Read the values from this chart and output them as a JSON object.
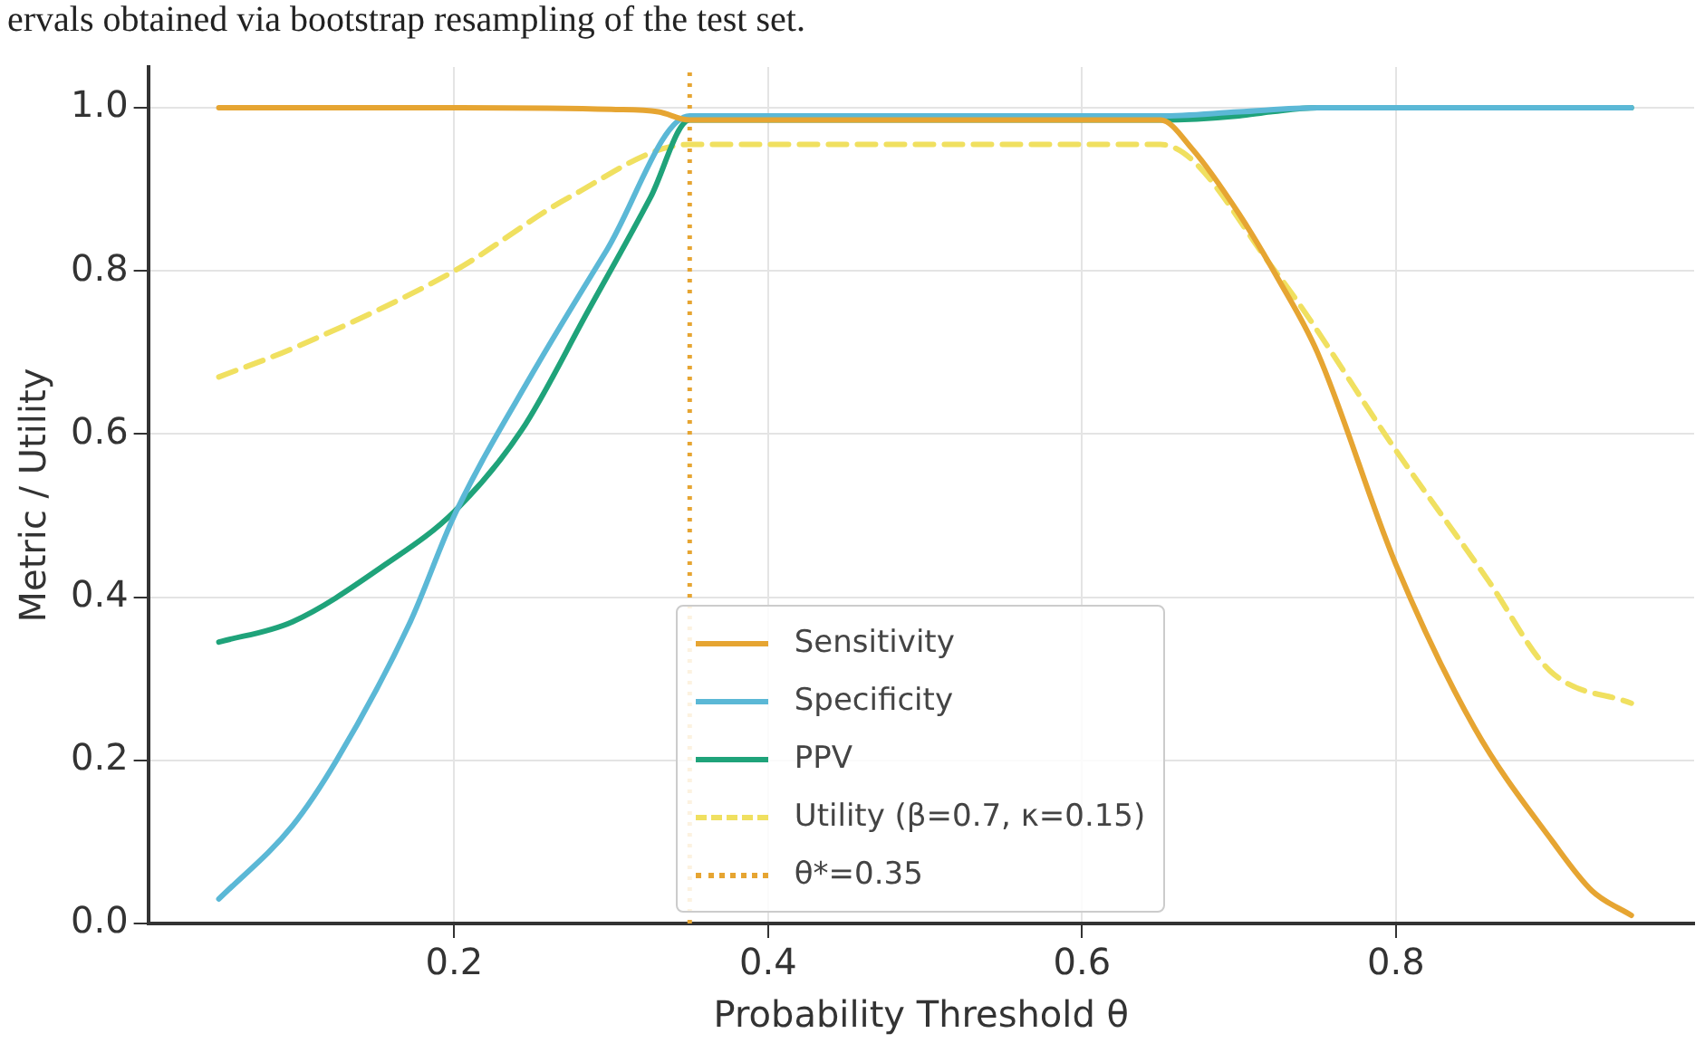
{
  "chart_data": {
    "type": "line",
    "xlabel": "Probability Threshold θ",
    "ylabel": "Metric / Utility",
    "annotations": [
      "ervals obtained via bootstrap resampling of the test set."
    ],
    "xlim": [
      0.005,
      0.99
    ],
    "ylim": [
      0,
      1.05
    ],
    "xticks": [
      0.2,
      0.4,
      0.6,
      0.8
    ],
    "yticks": [
      {
        "value": 0,
        "label": "0.0"
      },
      {
        "value": 0.2,
        "label": "0.2"
      },
      {
        "value": 0.4,
        "label": "0.4"
      },
      {
        "value": 0.6,
        "label": "0.6"
      },
      {
        "value": 0.8,
        "label": "0.8"
      },
      {
        "value": 1,
        "label": "1.0"
      }
    ],
    "grid": true,
    "legend": "bottom",
    "marker": "none",
    "series": [
      {
        "name": "Sensitivity",
        "color": "#e6a532",
        "x": [
          0.05,
          0.1,
          0.2,
          0.3,
          0.33,
          0.35,
          0.5,
          0.65,
          0.67,
          0.7,
          0.725,
          0.75,
          0.8,
          0.85,
          0.9,
          0.925,
          0.95
        ],
        "values": [
          1.0,
          1.0,
          1.0,
          0.998,
          0.995,
          0.985,
          0.985,
          0.985,
          0.95,
          0.87,
          0.79,
          0.7,
          0.44,
          0.24,
          0.1,
          0.04,
          0.01
        ]
      },
      {
        "name": "Specificity",
        "color": "#5bb8d6",
        "x": [
          0.05,
          0.097,
          0.125,
          0.172,
          0.2,
          0.25,
          0.297,
          0.35,
          0.5,
          0.65,
          0.7,
          0.75,
          0.8,
          0.95
        ],
        "values": [
          0.03,
          0.12,
          0.2,
          0.37,
          0.5,
          0.675,
          0.825,
          0.99,
          0.99,
          0.99,
          0.995,
          1.0,
          1.0,
          1.0
        ]
      },
      {
        "name": "PPV",
        "color": "#1fa37a",
        "x": [
          0.05,
          0.097,
          0.156,
          0.2,
          0.243,
          0.285,
          0.325,
          0.35,
          0.5,
          0.65,
          0.7,
          0.72,
          0.75,
          0.8,
          0.95
        ],
        "values": [
          0.345,
          0.37,
          0.44,
          0.505,
          0.605,
          0.75,
          0.89,
          0.985,
          0.985,
          0.985,
          0.99,
          0.995,
          1.0,
          1.0,
          1.0
        ]
      },
      {
        "name": "Utility (β=0.7, κ=0.15)",
        "color": "#f0e060",
        "line_style": "dashed",
        "x": [
          0.05,
          0.097,
          0.2,
          0.273,
          0.35,
          0.5,
          0.65,
          0.723,
          0.8,
          0.859,
          0.898,
          0.95
        ],
        "values": [
          0.67,
          0.705,
          0.8,
          0.89,
          0.955,
          0.955,
          0.955,
          0.8,
          0.58,
          0.42,
          0.31,
          0.27
        ]
      }
    ],
    "ref_lines": [
      {
        "axis": "x",
        "value": 0.35,
        "label": "θ*=0.35",
        "color": "#e6a532",
        "line_style": "dotted"
      }
    ]
  }
}
